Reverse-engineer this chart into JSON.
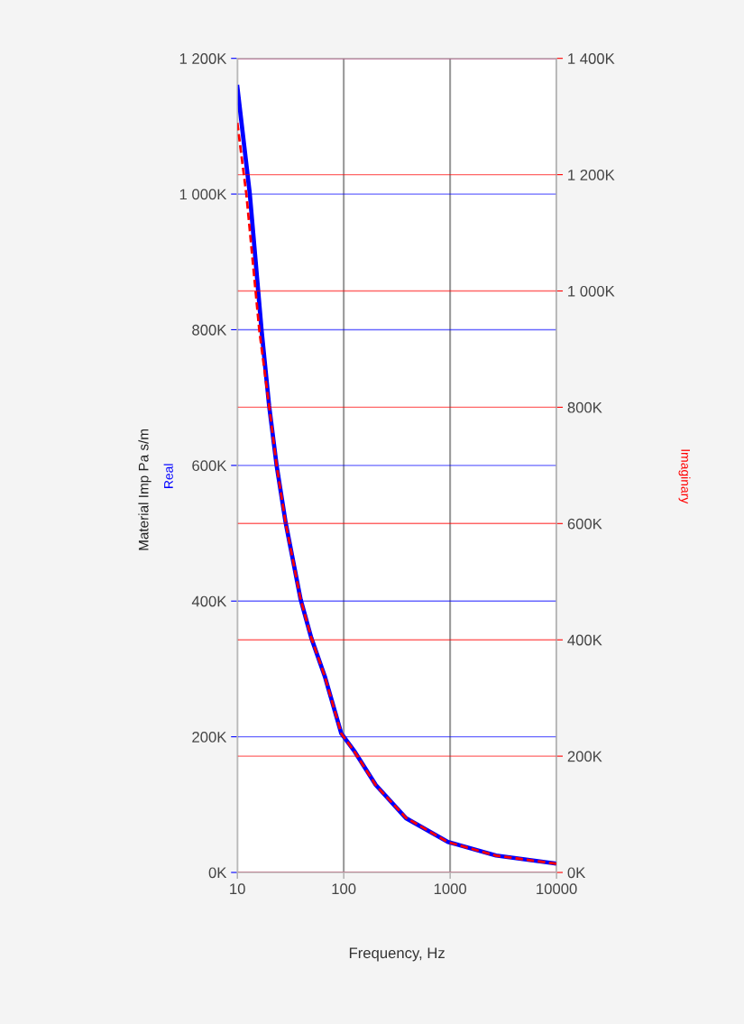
{
  "chart_data": {
    "type": "line",
    "xlabel": "Frequency, Hz",
    "ylabel": "Material Imp Pa s/m",
    "log": "x",
    "grid": true,
    "legend": false,
    "xlim": [
      10,
      10000
    ],
    "xticks": [
      10,
      100,
      1000,
      10000
    ],
    "ylim": [
      0,
      1200000
    ],
    "yticks": [
      {
        "value": 0,
        "label": "0K"
      },
      {
        "value": 200000,
        "label": "200K"
      },
      {
        "value": 400000,
        "label": "400K"
      },
      {
        "value": 600000,
        "label": "600K"
      },
      {
        "value": 800000,
        "label": "800K"
      },
      {
        "value": 1000000,
        "label": "1 000K"
      },
      {
        "value": 1200000,
        "label": "1 200K"
      }
    ],
    "y2lim": [
      0,
      1400000
    ],
    "y2ticks": [
      {
        "value": 0,
        "label": "0K"
      },
      {
        "value": 200000,
        "label": "200K"
      },
      {
        "value": 400000,
        "label": "400K"
      },
      {
        "value": 600000,
        "label": "600K"
      },
      {
        "value": 800000,
        "label": "800K"
      },
      {
        "value": 1000000,
        "label": "1 000K"
      },
      {
        "value": 1200000,
        "label": "1 200K"
      },
      {
        "value": 1400000,
        "label": "1 400K"
      }
    ],
    "series": [
      {
        "name": "Real",
        "color": "#0000ff",
        "line_style": "solid",
        "x": [
          10,
          13.1,
          16.9,
          19.9,
          23.4,
          28.5,
          39.4,
          49.5,
          66.4,
          94.8,
          127,
          200,
          385,
          955,
          2700,
          9000,
          10000
        ],
        "values": [
          1158000,
          1000000,
          799000,
          688000,
          600000,
          515000,
          402000,
          346000,
          289000,
          205000,
          178000,
          129000,
          80000,
          45000,
          25000,
          14000,
          13000
        ]
      },
      {
        "name": "Imaginary",
        "color": "#ff0000",
        "line_style": "dashed",
        "axis": "y2",
        "x": [
          10,
          12.2,
          16.1,
          19.9,
          23.4,
          28.5,
          39.4,
          49.5,
          66.4,
          94.8,
          127,
          200,
          385,
          955,
          2700,
          9000,
          10000
        ],
        "values": [
          1289000,
          1164000,
          932000,
          802000,
          700000,
          600000,
          469000,
          404000,
          337000,
          239000,
          207000,
          150000,
          94000,
          52000,
          29000,
          16000,
          15000
        ]
      }
    ]
  }
}
